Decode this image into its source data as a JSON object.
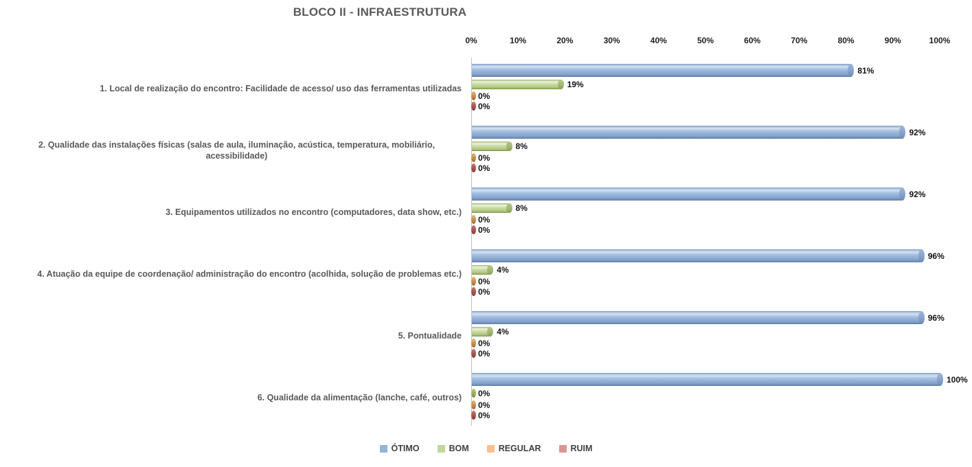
{
  "chart_data": {
    "type": "bar",
    "orientation": "horizontal",
    "title": "BLOCO II - INFRAESTRUTURA",
    "x_axis": {
      "min": 0,
      "max": 100,
      "tick_labels": [
        "0%",
        "10%",
        "20%",
        "30%",
        "40%",
        "50%",
        "60%",
        "70%",
        "80%",
        "90%",
        "100%"
      ]
    },
    "categories": [
      "1. Local de realização do encontro: Facilidade de acesso/ uso das ferramentas utilizadas",
      "2. Qualidade das instalações físicas (salas de aula, iluminação, acústica, temperatura, mobiliário, acessibilidade)",
      "3. Equipamentos utilizados no encontro (computadores, data show, etc.)",
      "4. Atuação da equipe de coordenação/ administração do encontro (acolhida, solução de problemas etc.)",
      "5. Pontualidade",
      "6. Qualidade da alimentação (lanche, café, outros)"
    ],
    "series": [
      {
        "name": "ÓTIMO",
        "color": "#95B3D7",
        "values": [
          81,
          92,
          92,
          96,
          96,
          100
        ]
      },
      {
        "name": "BOM",
        "color": "#C3D69B",
        "values": [
          19,
          8,
          8,
          4,
          4,
          0
        ]
      },
      {
        "name": "REGULAR",
        "color": "#FAC090",
        "values": [
          0,
          0,
          0,
          0,
          0,
          0
        ]
      },
      {
        "name": "RUIM",
        "color": "#D99694",
        "values": [
          0,
          0,
          0,
          0,
          0,
          0
        ]
      }
    ],
    "value_label_suffix": "%",
    "legend_position": "bottom",
    "grid": false
  }
}
